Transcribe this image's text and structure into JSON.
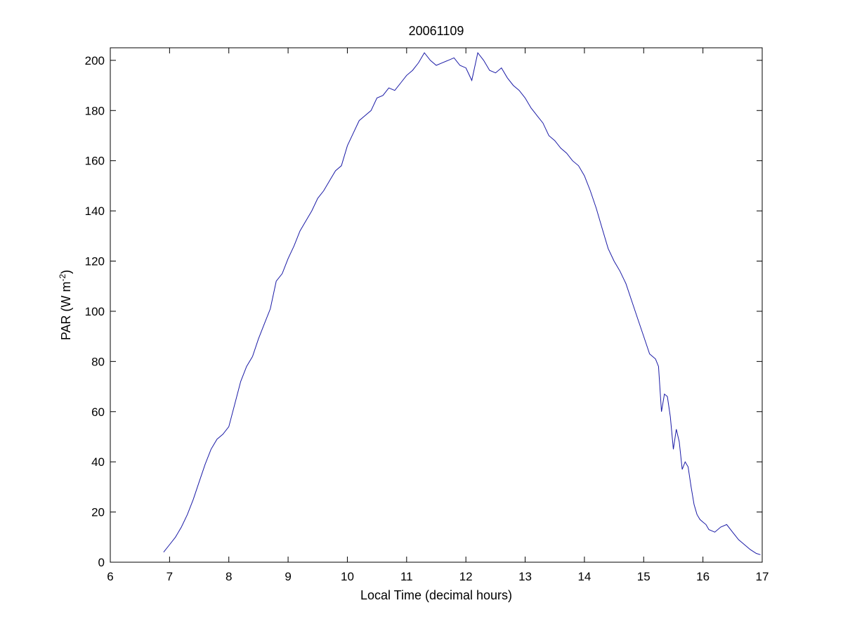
{
  "chart_data": {
    "type": "line",
    "title": "20061109",
    "xlabel": "Local Time (decimal hours)",
    "ylabel": {
      "main": "PAR (W m",
      "superscript": "-2",
      "close": ")"
    },
    "xlim": [
      6,
      17
    ],
    "ylim": [
      0,
      205
    ],
    "xticks": [
      6,
      7,
      8,
      9,
      10,
      11,
      12,
      13,
      14,
      15,
      16,
      17
    ],
    "yticks": [
      0,
      20,
      40,
      60,
      80,
      100,
      120,
      140,
      160,
      180,
      200
    ],
    "grid": false,
    "legend": "none",
    "line_color": "#1a1aa6",
    "series": [
      {
        "x": [
          6.9,
          7.0,
          7.1,
          7.2,
          7.3,
          7.4,
          7.5,
          7.6,
          7.7,
          7.8,
          7.9,
          8.0,
          8.1,
          8.2,
          8.3,
          8.4,
          8.5,
          8.6,
          8.7,
          8.8,
          8.9,
          9.0,
          9.1,
          9.2,
          9.3,
          9.4,
          9.5,
          9.6,
          9.7,
          9.8,
          9.9,
          10.0,
          10.1,
          10.2,
          10.3,
          10.4,
          10.5,
          10.6,
          10.7,
          10.8,
          10.9,
          11.0,
          11.1,
          11.2,
          11.3,
          11.4,
          11.5,
          11.6,
          11.7,
          11.8,
          11.9,
          12.0,
          12.1,
          12.2,
          12.3,
          12.4,
          12.5,
          12.6,
          12.7,
          12.8,
          12.9,
          13.0,
          13.1,
          13.2,
          13.3,
          13.4,
          13.5,
          13.6,
          13.7,
          13.8,
          13.9,
          14.0,
          14.1,
          14.2,
          14.3,
          14.4,
          14.5,
          14.6,
          14.7,
          14.8,
          14.9,
          15.0,
          15.1,
          15.2,
          15.25,
          15.3,
          15.35,
          15.4,
          15.45,
          15.5,
          15.55,
          15.6,
          15.65,
          15.7,
          15.75,
          15.8,
          15.85,
          15.9,
          15.95,
          16.0,
          16.05,
          16.1,
          16.2,
          16.3,
          16.4,
          16.5,
          16.6,
          16.7,
          16.8,
          16.9,
          16.97
        ],
        "y": [
          4,
          7,
          10,
          14,
          19,
          25,
          32,
          39,
          45,
          49,
          51,
          54,
          63,
          72,
          78,
          82,
          89,
          95,
          101,
          112,
          115,
          121,
          126,
          132,
          136,
          140,
          145,
          148,
          152,
          156,
          158,
          166,
          171,
          176,
          178,
          180,
          185,
          186,
          189,
          188,
          191,
          194,
          196,
          199,
          203,
          200,
          198,
          199,
          200,
          201,
          198,
          197,
          192,
          203,
          200,
          196,
          195,
          197,
          193,
          190,
          188,
          185,
          181,
          178,
          175,
          170,
          168,
          165,
          163,
          160,
          158,
          154,
          148,
          141,
          133,
          125,
          120,
          116,
          111,
          104,
          97,
          90,
          83,
          81,
          78,
          60,
          67,
          66,
          58,
          45,
          53,
          48,
          37,
          40,
          38,
          30,
          23,
          19,
          17,
          16,
          15,
          13,
          12,
          14,
          15,
          12,
          9,
          7,
          5,
          3.5,
          3
        ]
      }
    ]
  }
}
